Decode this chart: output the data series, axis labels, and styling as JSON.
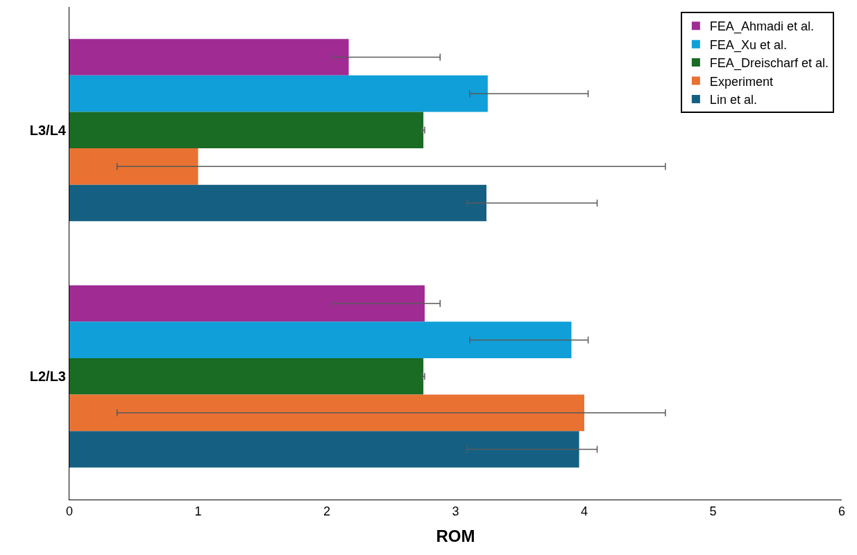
{
  "chart_data": {
    "type": "bar",
    "orientation": "horizontal",
    "xlabel": "ROM",
    "categories": [
      "L3/L4",
      "L2/L3"
    ],
    "series": [
      {
        "name": "FEA_Ahmadi et al.",
        "color": "#a02b93",
        "values": [
          2.17,
          2.76
        ],
        "errors": [
          [
            2.05,
            2.88
          ],
          [
            2.05,
            2.88
          ]
        ]
      },
      {
        "name": "FEA_Xu et al.",
        "color": "#109fd8",
        "values": [
          3.25,
          3.9
        ],
        "errors": [
          [
            3.11,
            4.03
          ],
          [
            3.11,
            4.03
          ]
        ]
      },
      {
        "name": "FEA_Dreischarf et al.",
        "color": "#1a6b24",
        "values": [
          2.75,
          2.75
        ],
        "errors": [
          [
            2.74,
            2.76
          ],
          [
            2.74,
            2.76
          ]
        ]
      },
      {
        "name": "Experiment",
        "color": "#e97132",
        "values": [
          1.0,
          4.0
        ],
        "errors": [
          [
            0.37,
            4.63
          ],
          [
            0.37,
            4.63
          ]
        ]
      },
      {
        "name": "Lin et al.",
        "color": "#156082",
        "values": [
          3.24,
          3.96
        ],
        "errors": [
          [
            3.09,
            4.1
          ],
          [
            3.09,
            4.1
          ]
        ]
      }
    ],
    "xlim": [
      0,
      6
    ],
    "xticks": [
      0,
      1,
      2,
      3,
      4,
      5,
      6
    ],
    "grid": false,
    "legend": "top right"
  }
}
